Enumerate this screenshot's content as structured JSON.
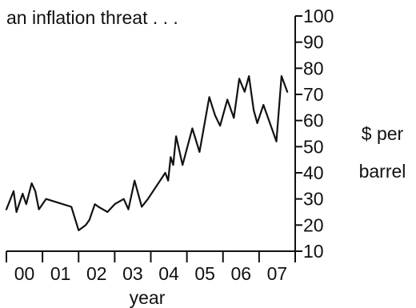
{
  "chart_data": {
    "type": "line",
    "title": "an inflation threat . . .",
    "xlabel": "year",
    "ylabel": "$ per barrel",
    "ylabel_lines": [
      "$ per",
      "barrel"
    ],
    "ylim": [
      10,
      100
    ],
    "y_ticks": [
      10,
      20,
      30,
      40,
      50,
      60,
      70,
      80,
      90,
      100
    ],
    "x_tick_labels": [
      "00",
      "01",
      "02",
      "03",
      "04",
      "05",
      "06",
      "07"
    ],
    "x_range": [
      2000.0,
      2008.0
    ],
    "y_axis_position": "right",
    "grid": false,
    "legend": "none",
    "line_color": "#111111",
    "series": [
      {
        "x": [
          2000.0,
          2000.2,
          2000.28,
          2000.45,
          2000.55,
          2000.7,
          2000.8,
          2000.9,
          2001.1,
          2001.8,
          2002.0,
          2002.2,
          2002.3,
          2002.45,
          2002.55,
          2002.8,
          2003.0,
          2003.25,
          2003.38,
          2003.55,
          2003.75,
          2003.92,
          2004.4,
          2004.48,
          2004.55,
          2004.62,
          2004.7,
          2004.88,
          2005.15,
          2005.35,
          2005.62,
          2005.78,
          2005.92,
          2006.12,
          2006.3,
          2006.45,
          2006.6,
          2006.72,
          2006.85,
          2006.95,
          2007.12,
          2007.48,
          2007.62,
          2007.78
        ],
        "y": [
          26,
          33,
          25,
          32,
          28,
          36,
          33,
          26,
          30,
          27,
          18,
          20,
          22,
          28,
          27,
          25,
          28,
          30,
          26,
          37,
          27,
          30,
          40,
          37,
          46,
          43,
          54,
          43,
          57,
          48,
          69,
          62,
          58,
          68,
          61,
          76,
          71,
          77,
          64,
          59,
          66,
          52,
          77,
          71
        ]
      }
    ]
  }
}
